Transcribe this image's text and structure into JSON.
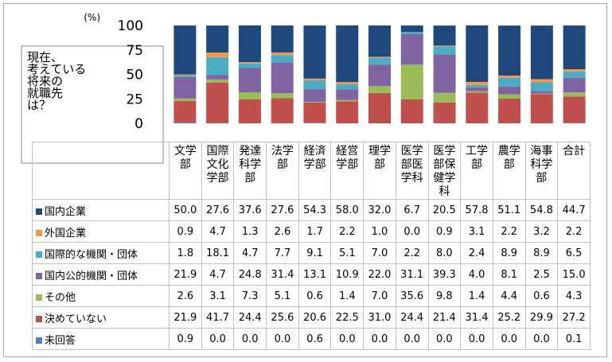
{
  "chart_data": {
    "type": "stacked_bar",
    "y_unit": "(%)",
    "question": [
      "現在、",
      "考えている",
      "将来の",
      "就職先",
      "は？"
    ],
    "categories": [
      "文学部",
      "国際文化学部",
      "発達科学部",
      "法学部",
      "経済学部",
      "経営学部",
      "理学部",
      "医学部医学科",
      "医学部保健学科",
      "工学部",
      "農学部",
      "海事科学部",
      "合計"
    ],
    "ylim": [
      0,
      100
    ],
    "yticks": [
      0,
      25,
      50,
      75,
      100
    ],
    "series": [
      {
        "name": "国内企業",
        "color": "#1f497d",
        "values": [
          50.0,
          27.6,
          37.6,
          27.6,
          54.3,
          58.0,
          32.0,
          6.7,
          20.5,
          57.8,
          51.1,
          54.8,
          44.7
        ],
        "value_labels": [
          "50.0",
          "27.6",
          "37.6",
          "27.6",
          "54.3",
          "58.0",
          "32.0",
          "6.7",
          "20.5",
          "57.8",
          "51.1",
          "54.8",
          "44.7"
        ]
      },
      {
        "name": "外国企業",
        "color": "#f79646",
        "values": [
          0.9,
          4.7,
          1.3,
          2.6,
          1.7,
          2.2,
          1.0,
          0.0,
          0.9,
          3.1,
          2.2,
          3.2,
          2.2
        ],
        "value_labels": [
          "0.9",
          "4.7",
          "1.3",
          "2.6",
          "1.7",
          "2.2",
          "1.0",
          "0.0",
          "0.9",
          "3.1",
          "2.2",
          "3.2",
          "2.2"
        ]
      },
      {
        "name": "国際的な機関・団体",
        "color": "#4bacc6",
        "values": [
          1.8,
          18.1,
          4.7,
          7.7,
          9.1,
          5.1,
          7.0,
          2.2,
          8.0,
          2.4,
          8.9,
          8.9,
          6.5
        ],
        "value_labels": [
          "1.8",
          "18.1",
          "4.7",
          "7.7",
          "9.1",
          "5.1",
          "7.0",
          "2.2",
          "8.0",
          "2.4",
          "8.9",
          "8.9",
          "6.5"
        ]
      },
      {
        "name": "国内公的機関・団体",
        "color": "#8064a2",
        "values": [
          21.9,
          4.7,
          24.8,
          31.4,
          13.1,
          10.9,
          22.0,
          31.1,
          39.3,
          4.0,
          8.1,
          2.5,
          15.0
        ],
        "value_labels": [
          "21.9",
          "4.7",
          "24.8",
          "31.4",
          "13.1",
          "10.9",
          "22.0",
          "31.1",
          "39.3",
          "4.0",
          "8.1",
          "2.5",
          "15.0"
        ]
      },
      {
        "name": "その他",
        "color": "#9bbb59",
        "values": [
          2.6,
          3.1,
          7.3,
          5.1,
          0.6,
          1.4,
          7.0,
          35.6,
          9.8,
          1.4,
          4.4,
          0.6,
          4.3
        ],
        "value_labels": [
          "2.6",
          "3.1",
          "7.3",
          "5.1",
          "0.6",
          "1.4",
          "7.0",
          "35.6",
          "9.8",
          "1.4",
          "4.4",
          "0.6",
          "4.3"
        ]
      },
      {
        "name": "決めていない",
        "color": "#c0504d",
        "values": [
          21.9,
          41.7,
          24.4,
          25.6,
          20.6,
          22.5,
          31.0,
          24.4,
          21.4,
          31.4,
          25.2,
          29.9,
          27.2
        ],
        "value_labels": [
          "21.9",
          "41.7",
          "24.4",
          "25.6",
          "20.6",
          "22.5",
          "31.0",
          "24.4",
          "21.4",
          "31.4",
          "25.2",
          "29.9",
          "27.2"
        ]
      },
      {
        "name": "未回答",
        "color": "#4f81bd",
        "values": [
          0.9,
          0.0,
          0.0,
          0.0,
          0.6,
          0.0,
          0.0,
          0.0,
          0.0,
          0.0,
          0.0,
          0.0,
          0.1
        ],
        "value_labels": [
          "0.9",
          "0.0",
          "0.0",
          "0.0",
          "0.6",
          "0.0",
          "0.0",
          "0.0",
          "0.0",
          "0.0",
          "0.0",
          "0.0",
          "0.1"
        ]
      }
    ]
  }
}
